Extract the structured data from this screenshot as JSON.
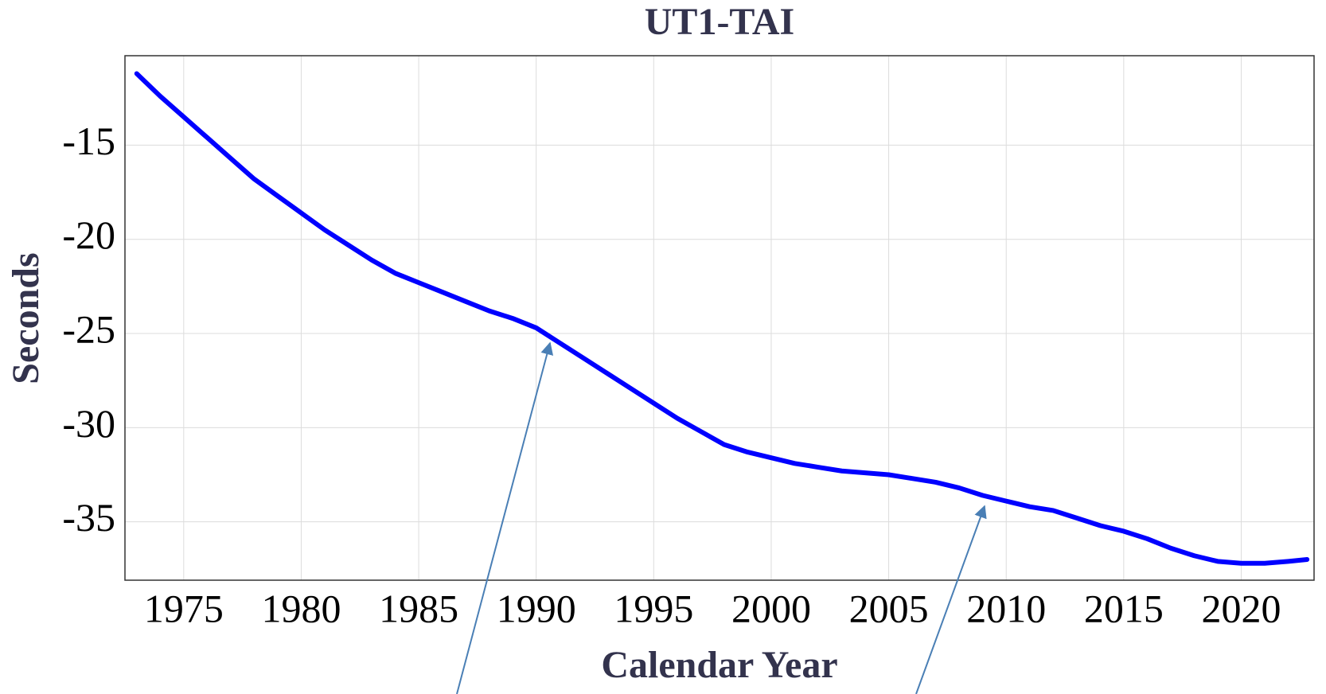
{
  "chart_data": {
    "type": "line",
    "title": "UT1-TAI",
    "xlabel": "Calendar Year",
    "ylabel": "Seconds",
    "x": [
      1973,
      1974,
      1975,
      1976,
      1977,
      1978,
      1979,
      1980,
      1981,
      1982,
      1983,
      1984,
      1985,
      1986,
      1987,
      1988,
      1989,
      1990,
      1991,
      1992,
      1993,
      1994,
      1995,
      1996,
      1997,
      1998,
      1999,
      2000,
      2001,
      2002,
      2003,
      2004,
      2005,
      2006,
      2007,
      2008,
      2009,
      2010,
      2011,
      2012,
      2013,
      2014,
      2015,
      2016,
      2017,
      2018,
      2019,
      2020,
      2021,
      2022,
      2022.8
    ],
    "series": [
      {
        "name": "UT1-TAI",
        "color": "#0000ff",
        "values": [
          -11.2,
          -12.4,
          -13.5,
          -14.6,
          -15.7,
          -16.8,
          -17.7,
          -18.6,
          -19.5,
          -20.3,
          -21.1,
          -21.8,
          -22.3,
          -22.8,
          -23.3,
          -23.8,
          -24.2,
          -24.7,
          -25.5,
          -26.3,
          -27.1,
          -27.9,
          -28.7,
          -29.5,
          -30.2,
          -30.9,
          -31.3,
          -31.6,
          -31.9,
          -32.1,
          -32.3,
          -32.4,
          -32.5,
          -32.7,
          -32.9,
          -33.2,
          -33.6,
          -33.9,
          -34.2,
          -34.4,
          -34.8,
          -35.2,
          -35.5,
          -35.9,
          -36.4,
          -36.8,
          -37.1,
          -37.2,
          -37.2,
          -37.1,
          -37.0
        ]
      }
    ],
    "xlim": [
      1972.5,
      2023.1
    ],
    "xticks": [
      1975,
      1980,
      1985,
      1990,
      1995,
      2000,
      2005,
      2010,
      2015,
      2020
    ],
    "ylim": [
      -38.1,
      -10.25
    ],
    "yticks": [
      -35,
      -30,
      -25,
      -20,
      -15
    ],
    "grid": true
  }
}
